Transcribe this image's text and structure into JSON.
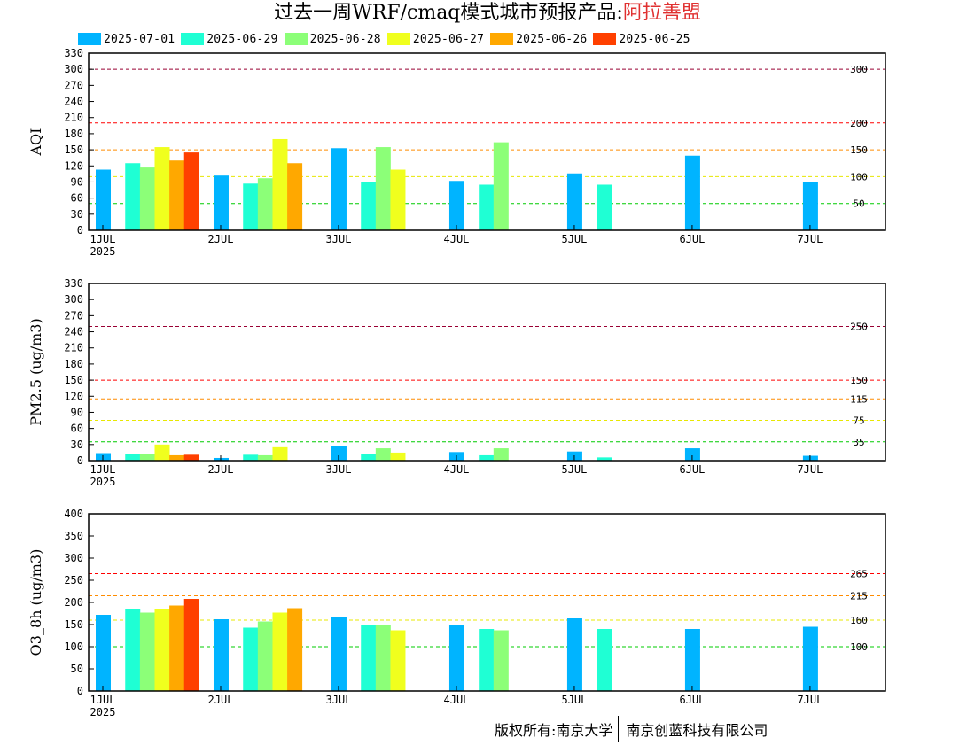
{
  "title": {
    "main": "过去一周WRF/cmaq模式城市预报产品:",
    "city": "阿拉善盟"
  },
  "legend": [
    {
      "label": "2025-07-01",
      "color": "#00b4ff"
    },
    {
      "label": "2025-06-29",
      "color": "#1fffd4"
    },
    {
      "label": "2025-06-28",
      "color": "#8cff78"
    },
    {
      "label": "2025-06-27",
      "color": "#f0ff1e"
    },
    {
      "label": "2025-06-26",
      "color": "#ffa800"
    },
    {
      "label": "2025-06-25",
      "color": "#ff4000"
    }
  ],
  "footer": {
    "left": "版权所有:南京大学",
    "right": "南京创蓝科技有限公司"
  },
  "chart_data": [
    {
      "type": "bar",
      "ylabel": "AQI",
      "ylim": [
        0,
        330
      ],
      "yticks": [
        0,
        30,
        60,
        90,
        120,
        150,
        180,
        210,
        240,
        270,
        300,
        330
      ],
      "xlim": [
        0,
        6.7
      ],
      "xticks": [
        {
          "x": 0,
          "label": "1JUL",
          "sub": "2025"
        },
        {
          "x": 1,
          "label": "2JUL"
        },
        {
          "x": 2,
          "label": "3JUL"
        },
        {
          "x": 3,
          "label": "4JUL"
        },
        {
          "x": 4,
          "label": "5JUL"
        },
        {
          "x": 5,
          "label": "6JUL"
        },
        {
          "x": 6,
          "label": "7JUL"
        }
      ],
      "thresholds": [
        {
          "value": 50,
          "label": "50",
          "color": "#00cc00"
        },
        {
          "value": 100,
          "label": "100",
          "color": "#e8e800"
        },
        {
          "value": 150,
          "label": "150",
          "color": "#ff8c00"
        },
        {
          "value": 200,
          "label": "200",
          "color": "#ff0000"
        },
        {
          "value": 300,
          "label": "300",
          "color": "#990033"
        }
      ],
      "series": [
        {
          "name": "2025-07-01",
          "points": [
            [
              0,
              0.0,
              113
            ],
            [
              1,
              0.0,
              102
            ],
            [
              2,
              0.0,
              153
            ],
            [
              3,
              0.0,
              92
            ],
            [
              4,
              0.0,
              106
            ],
            [
              5,
              0.0,
              139
            ],
            [
              6,
              0.0,
              90
            ]
          ]
        },
        {
          "name": "2025-06-29",
          "points": [
            [
              0,
              0.25,
              125
            ],
            [
              1,
              0.25,
              87
            ],
            [
              2,
              0.25,
              90
            ],
            [
              3,
              0.25,
              85
            ],
            [
              4,
              0.25,
              85
            ]
          ]
        },
        {
          "name": "2025-06-28",
          "points": [
            [
              0,
              0.375,
              117
            ],
            [
              1,
              0.375,
              97
            ],
            [
              2,
              0.375,
              155
            ],
            [
              3,
              0.375,
              164
            ]
          ]
        },
        {
          "name": "2025-06-27",
          "points": [
            [
              0,
              0.5,
              155
            ],
            [
              1,
              0.5,
              170
            ],
            [
              2,
              0.5,
              113
            ]
          ]
        },
        {
          "name": "2025-06-26",
          "points": [
            [
              0,
              0.625,
              130
            ],
            [
              1,
              0.625,
              125
            ]
          ]
        },
        {
          "name": "2025-06-25",
          "points": [
            [
              0,
              0.75,
              145
            ]
          ]
        }
      ]
    },
    {
      "type": "bar",
      "ylabel": "PM2.5 (ug/m3)",
      "ylim": [
        0,
        330
      ],
      "yticks": [
        0,
        30,
        60,
        90,
        120,
        150,
        180,
        210,
        240,
        270,
        300,
        330
      ],
      "xlim": [
        0,
        6.7
      ],
      "xticks": [
        {
          "x": 0,
          "label": "1JUL",
          "sub": "2025"
        },
        {
          "x": 1,
          "label": "2JUL"
        },
        {
          "x": 2,
          "label": "3JUL"
        },
        {
          "x": 3,
          "label": "4JUL"
        },
        {
          "x": 4,
          "label": "5JUL"
        },
        {
          "x": 5,
          "label": "6JUL"
        },
        {
          "x": 6,
          "label": "7JUL"
        }
      ],
      "thresholds": [
        {
          "value": 35,
          "label": "35",
          "color": "#00cc00"
        },
        {
          "value": 75,
          "label": "75",
          "color": "#e8e800"
        },
        {
          "value": 115,
          "label": "115",
          "color": "#ff8c00"
        },
        {
          "value": 150,
          "label": "150",
          "color": "#ff0000"
        },
        {
          "value": 250,
          "label": "250",
          "color": "#990033"
        }
      ],
      "series": [
        {
          "name": "2025-07-01",
          "points": [
            [
              0,
              0.0,
              14
            ],
            [
              1,
              0.0,
              5
            ],
            [
              2,
              0.0,
              28
            ],
            [
              3,
              0.0,
              16
            ],
            [
              4,
              0.0,
              17
            ],
            [
              5,
              0.0,
              23
            ],
            [
              6,
              0.0,
              9
            ]
          ]
        },
        {
          "name": "2025-06-29",
          "points": [
            [
              0,
              0.25,
              13
            ],
            [
              1,
              0.25,
              11
            ],
            [
              2,
              0.25,
              13
            ],
            [
              3,
              0.25,
              10
            ],
            [
              4,
              0.25,
              6
            ]
          ]
        },
        {
          "name": "2025-06-28",
          "points": [
            [
              0,
              0.375,
              13
            ],
            [
              1,
              0.375,
              10
            ],
            [
              2,
              0.375,
              23
            ],
            [
              3,
              0.375,
              23
            ]
          ]
        },
        {
          "name": "2025-06-27",
          "points": [
            [
              0,
              0.5,
              30
            ],
            [
              1,
              0.5,
              25
            ],
            [
              2,
              0.5,
              15
            ]
          ]
        },
        {
          "name": "2025-06-26",
          "points": [
            [
              0,
              0.625,
              10
            ],
            [
              1,
              0.625,
              0
            ]
          ]
        },
        {
          "name": "2025-06-25",
          "points": [
            [
              0,
              0.75,
              11
            ]
          ]
        }
      ]
    },
    {
      "type": "bar",
      "ylabel": "O3_8h (ug/m3)",
      "ylim": [
        0,
        400
      ],
      "yticks": [
        0,
        50,
        100,
        150,
        200,
        250,
        300,
        350,
        400
      ],
      "xlim": [
        0,
        6.7
      ],
      "xticks": [
        {
          "x": 0,
          "label": "1JUL",
          "sub": "2025"
        },
        {
          "x": 1,
          "label": "2JUL"
        },
        {
          "x": 2,
          "label": "3JUL"
        },
        {
          "x": 3,
          "label": "4JUL"
        },
        {
          "x": 4,
          "label": "5JUL"
        },
        {
          "x": 5,
          "label": "6JUL"
        },
        {
          "x": 6,
          "label": "7JUL"
        }
      ],
      "thresholds": [
        {
          "value": 100,
          "label": "100",
          "color": "#00cc00"
        },
        {
          "value": 160,
          "label": "160",
          "color": "#e8e800"
        },
        {
          "value": 215,
          "label": "215",
          "color": "#ff8c00"
        },
        {
          "value": 265,
          "label": "265",
          "color": "#ff0000"
        }
      ],
      "series": [
        {
          "name": "2025-07-01",
          "points": [
            [
              0,
              0.0,
              172
            ],
            [
              1,
              0.0,
              162
            ],
            [
              2,
              0.0,
              168
            ],
            [
              3,
              0.0,
              150
            ],
            [
              4,
              0.0,
              164
            ],
            [
              5,
              0.0,
              140
            ],
            [
              6,
              0.0,
              145
            ]
          ]
        },
        {
          "name": "2025-06-29",
          "points": [
            [
              0,
              0.25,
              186
            ],
            [
              1,
              0.25,
              143
            ],
            [
              2,
              0.25,
              148
            ],
            [
              3,
              0.25,
              140
            ],
            [
              4,
              0.25,
              140
            ]
          ]
        },
        {
          "name": "2025-06-28",
          "points": [
            [
              0,
              0.375,
              177
            ],
            [
              1,
              0.375,
              157
            ],
            [
              2,
              0.375,
              150
            ],
            [
              3,
              0.375,
              137
            ]
          ]
        },
        {
          "name": "2025-06-27",
          "points": [
            [
              0,
              0.5,
              185
            ],
            [
              1,
              0.5,
              177
            ],
            [
              2,
              0.5,
              137
            ]
          ]
        },
        {
          "name": "2025-06-26",
          "points": [
            [
              0,
              0.625,
              193
            ],
            [
              1,
              0.625,
              187
            ]
          ]
        },
        {
          "name": "2025-06-25",
          "points": [
            [
              0,
              0.75,
              208
            ]
          ]
        }
      ]
    }
  ]
}
